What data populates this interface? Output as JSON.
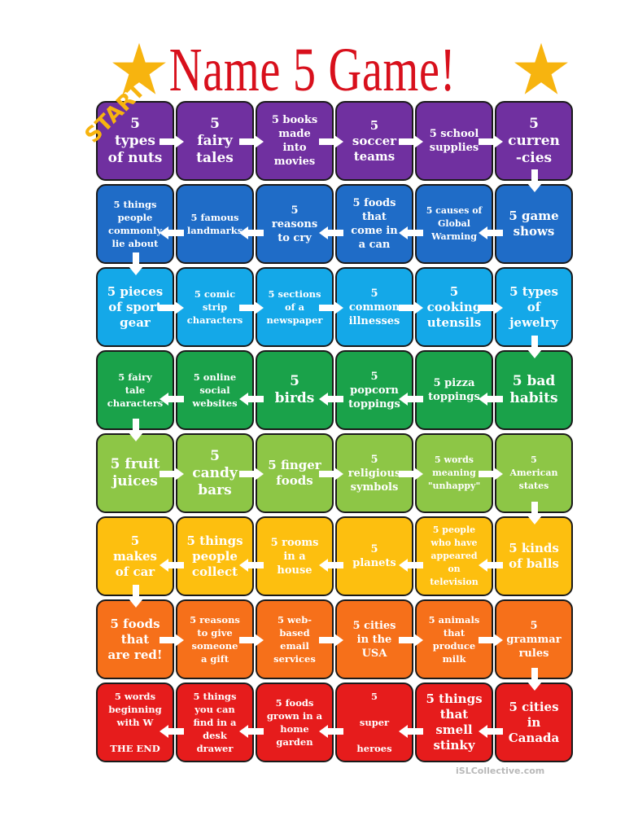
{
  "title": "Name 5 Game!",
  "start_label": "START",
  "watermark": "iSLCollective.com",
  "colors": {
    "title": "#d8101c",
    "star": "#f7b40f",
    "rows": [
      "#7030a0",
      "#1f6cc7",
      "#14a8e8",
      "#1aa24a",
      "#8dc646",
      "#fdbf0f",
      "#f6701a",
      "#e61c1c"
    ]
  },
  "rows": [
    [
      "5\ntypes\nof nuts",
      "5\nfairy\ntales",
      "5 books\nmade\ninto\nmovies",
      "5\nsoccer\nteams",
      "5 school\nsupplies",
      "5\ncurren\n-cies"
    ],
    [
      "5 things\npeople\ncommonly\nlie about",
      "5 famous\nlandmarks",
      "5\nreasons\nto cry",
      "5 foods\nthat\ncome in\na can",
      "5 causes of\nGlobal\nWarming",
      "5 game\nshows"
    ],
    [
      "5 pieces\nof sport\ngear",
      "5 comic\nstrip\ncharacters",
      "5 sections\nof a\nnewspaper",
      "5\ncommon\nillnesses",
      "5\ncooking\nutensils",
      "5 types\nof\njewelry"
    ],
    [
      "5 fairy\ntale\ncharacters",
      "5 online\nsocial\nwebsites",
      "5\nbirds",
      "5\npopcorn\ntoppings",
      "5 pizza\ntoppings",
      "5 bad\nhabits"
    ],
    [
      "5 fruit\njuices",
      "5\ncandy\nbars",
      "5 finger\nfoods",
      "5\nreligious\nsymbols",
      "5 words\nmeaning\n\"unhappy\"",
      "5\nAmerican\nstates"
    ],
    [
      "5\nmakes\nof car",
      "5 things\npeople\ncollect",
      "5 rooms\nin a\nhouse",
      "5\nplanets",
      "5 people\nwho have\nappeared\non\ntelevision",
      "5 kinds\nof balls"
    ],
    [
      "5 foods\nthat\nare red!",
      "5 reasons\nto give\nsomeone\na gift",
      "5 web-\nbased\nemail\nservices",
      "5 cities\nin the\nUSA",
      "5 animals\nthat\nproduce\nmilk",
      "5\ngrammar\nrules"
    ],
    [
      "5 words\nbeginning\nwith W\n\nTHE END",
      "5 things\nyou can\nfind in a\ndesk\ndrawer",
      "5 foods\ngrown in a\nhome\ngarden",
      "5\n\nsuper\n\nheroes",
      "5 things\nthat\nsmell\nstinky",
      "5 cities\nin\nCanada"
    ]
  ],
  "font_classes": [
    [
      "fs-xl",
      "fs-xl",
      "fs-m",
      "fs-l",
      "fs-m",
      "fs-xl"
    ],
    [
      "fs-s",
      "fs-s",
      "fs-m",
      "fs-m",
      "fs-xs",
      "fs-l"
    ],
    [
      "fs-l",
      "fs-s",
      "fs-s",
      "fs-m",
      "fs-l",
      "fs-l"
    ],
    [
      "fs-s",
      "fs-s",
      "fs-xl",
      "fs-m",
      "fs-m",
      "fs-xl"
    ],
    [
      "fs-xl",
      "fs-xl",
      "fs-l",
      "fs-m",
      "fs-xs",
      "fs-xs"
    ],
    [
      "fs-l",
      "fs-l",
      "fs-m",
      "fs-m",
      "fs-xs",
      "fs-l"
    ],
    [
      "fs-l",
      "fs-s",
      "fs-s",
      "fs-m",
      "fs-s",
      "fs-m"
    ],
    [
      "fs-s",
      "fs-s",
      "fs-s",
      "fs-s",
      "fs-l",
      "fs-l"
    ]
  ]
}
